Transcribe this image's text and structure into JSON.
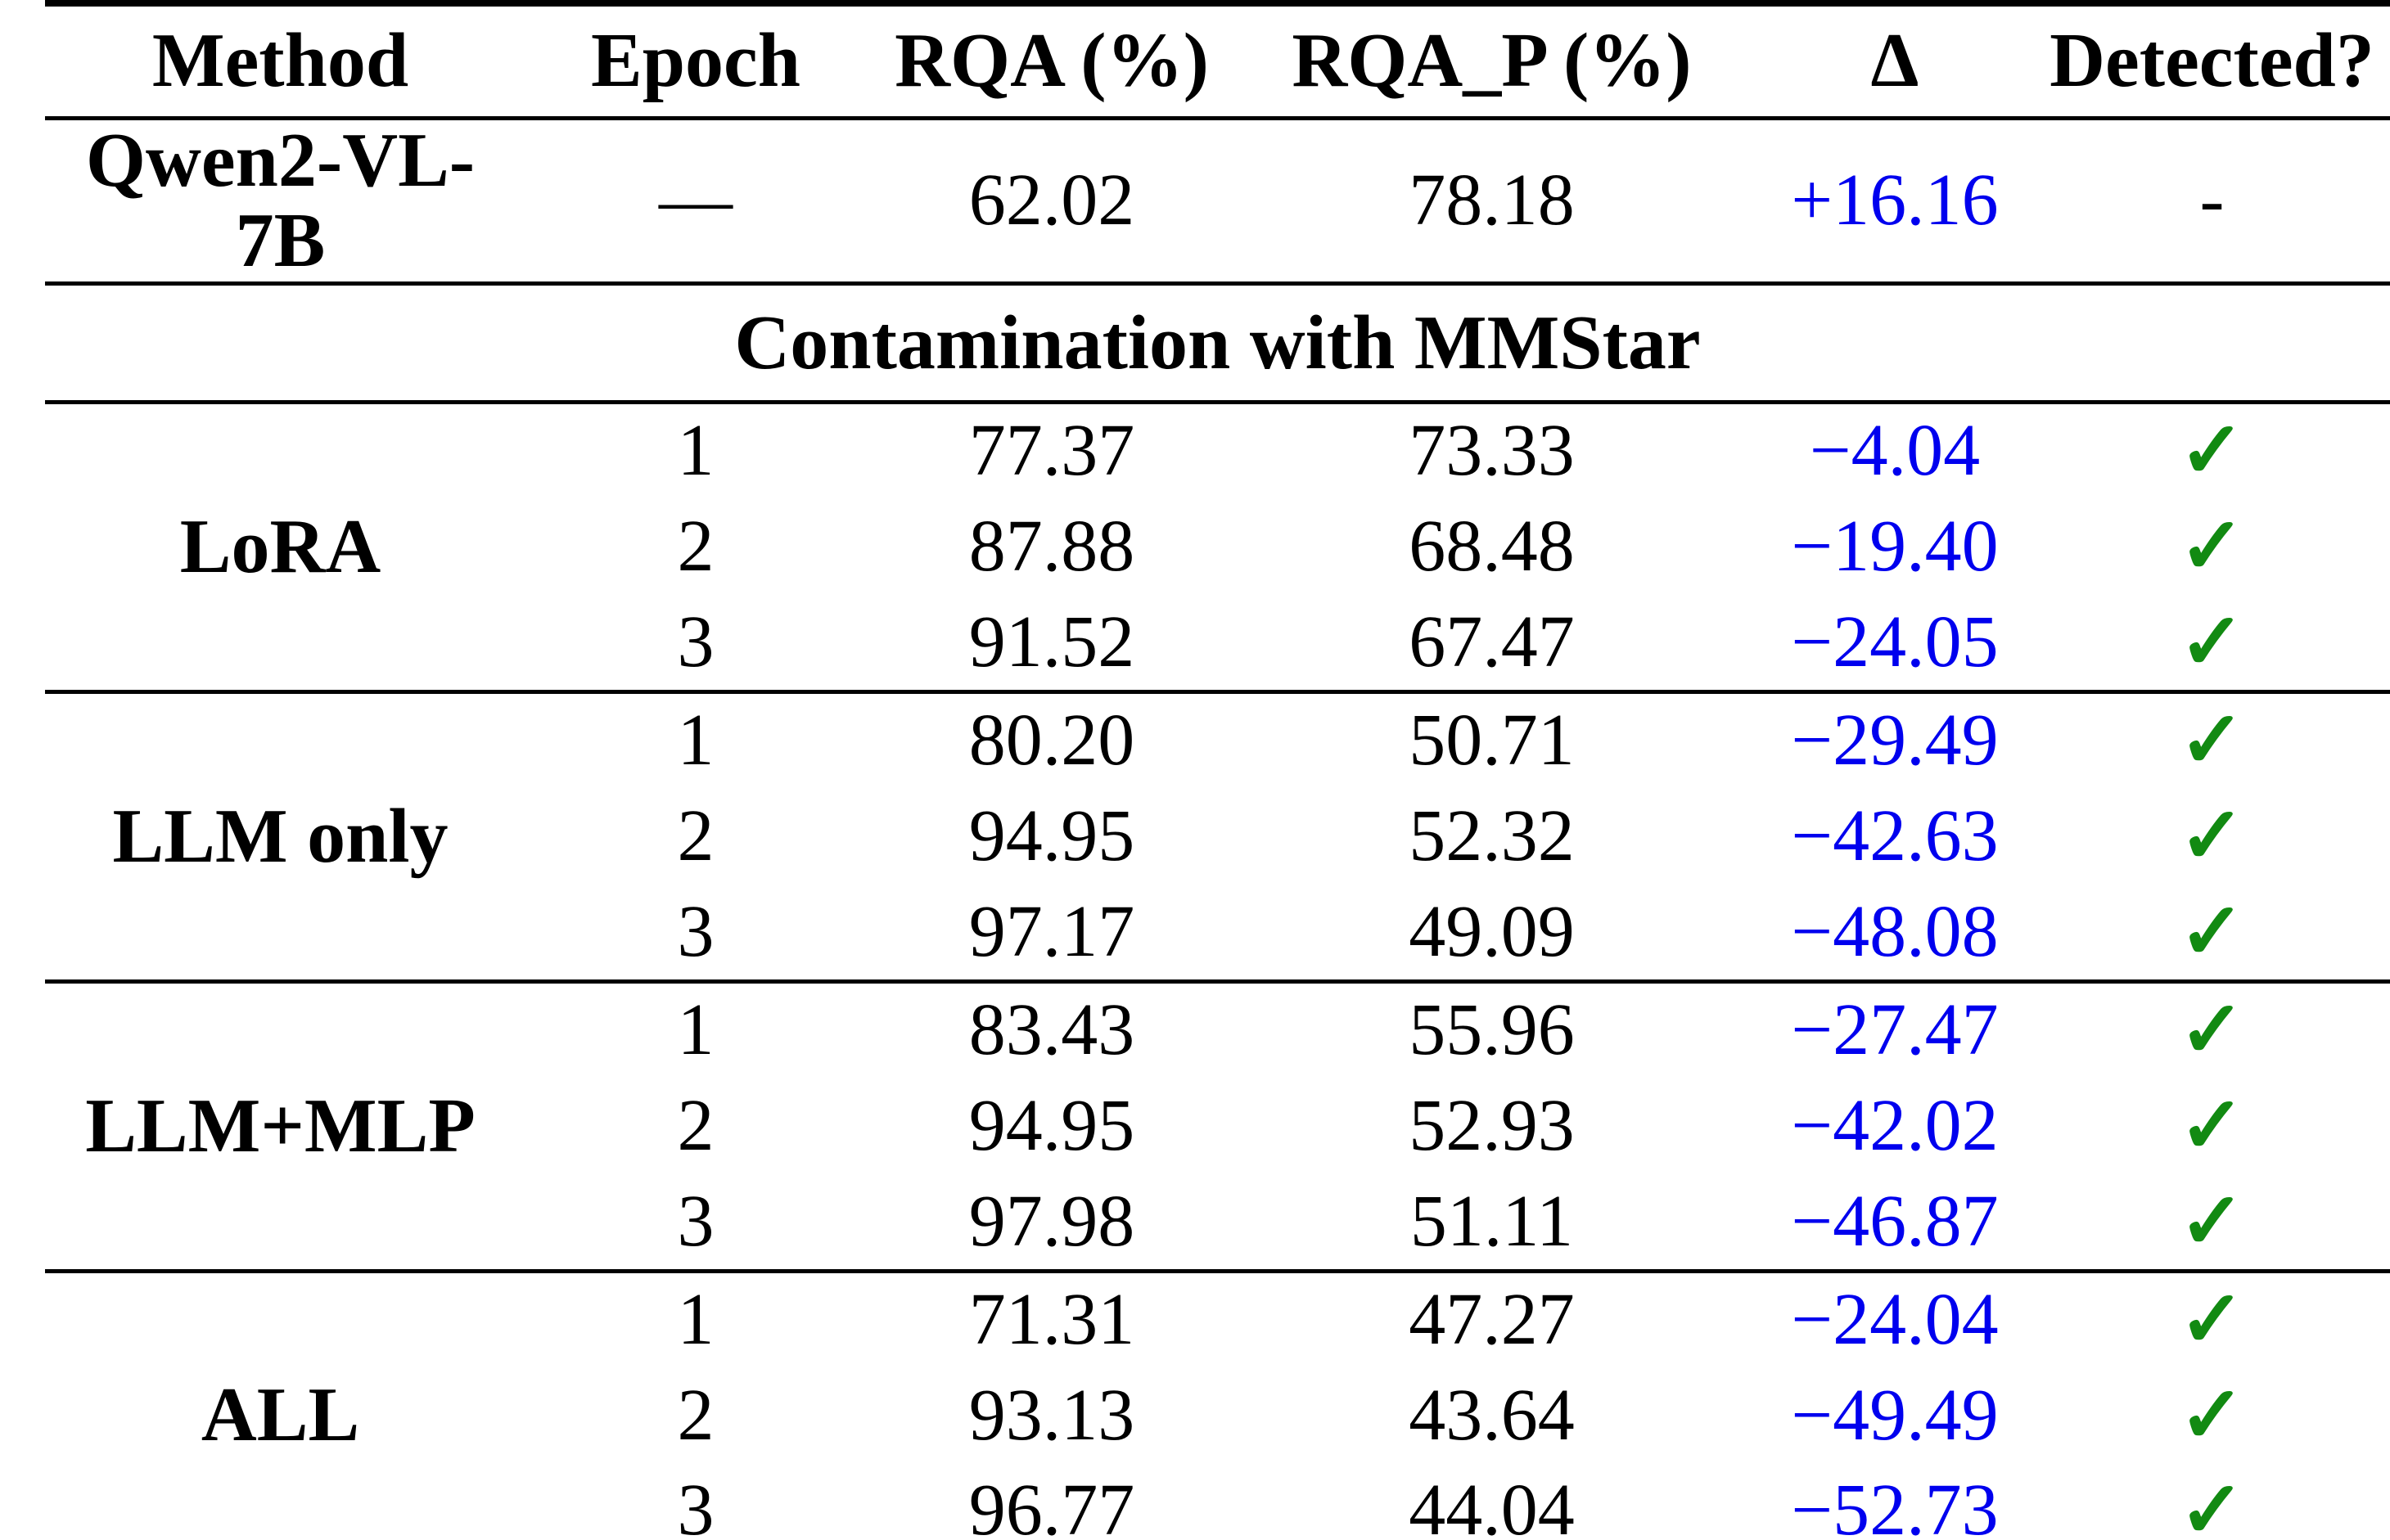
{
  "colors": {
    "delta": "#0000EE",
    "check": "#128A12",
    "rule": "#000000",
    "text": "#000000",
    "background": "#FFFFFF"
  },
  "table": {
    "columns": [
      "Method",
      "Epoch",
      "RQA (%)",
      "RQA_P (%)",
      "Δ",
      "Detected?"
    ],
    "baseline": {
      "method": "Qwen2-VL-7B",
      "epoch": "—",
      "rqa": "62.02",
      "rqa_p": "78.18",
      "delta": "+16.16",
      "detected": "-"
    },
    "section_header": "Contamination with MMStar",
    "groups": [
      {
        "method": "LoRA",
        "rows": [
          {
            "epoch": "1",
            "rqa": "77.37",
            "rqa_p": "73.33",
            "delta": "−4.04",
            "detected": "✓"
          },
          {
            "epoch": "2",
            "rqa": "87.88",
            "rqa_p": "68.48",
            "delta": "−19.40",
            "detected": "✓"
          },
          {
            "epoch": "3",
            "rqa": "91.52",
            "rqa_p": "67.47",
            "delta": "−24.05",
            "detected": "✓"
          }
        ]
      },
      {
        "method": "LLM only",
        "rows": [
          {
            "epoch": "1",
            "rqa": "80.20",
            "rqa_p": "50.71",
            "delta": "−29.49",
            "detected": "✓"
          },
          {
            "epoch": "2",
            "rqa": "94.95",
            "rqa_p": "52.32",
            "delta": "−42.63",
            "detected": "✓"
          },
          {
            "epoch": "3",
            "rqa": "97.17",
            "rqa_p": "49.09",
            "delta": "−48.08",
            "detected": "✓"
          }
        ]
      },
      {
        "method": "LLM+MLP",
        "rows": [
          {
            "epoch": "1",
            "rqa": "83.43",
            "rqa_p": "55.96",
            "delta": "−27.47",
            "detected": "✓"
          },
          {
            "epoch": "2",
            "rqa": "94.95",
            "rqa_p": "52.93",
            "delta": "−42.02",
            "detected": "✓"
          },
          {
            "epoch": "3",
            "rqa": "97.98",
            "rqa_p": "51.11",
            "delta": "−46.87",
            "detected": "✓"
          }
        ]
      },
      {
        "method": "ALL",
        "rows": [
          {
            "epoch": "1",
            "rqa": "71.31",
            "rqa_p": "47.27",
            "delta": "−24.04",
            "detected": "✓"
          },
          {
            "epoch": "2",
            "rqa": "93.13",
            "rqa_p": "43.64",
            "delta": "−49.49",
            "detected": "✓"
          },
          {
            "epoch": "3",
            "rqa": "96.77",
            "rqa_p": "44.04",
            "delta": "−52.73",
            "detected": "✓"
          }
        ]
      }
    ]
  }
}
